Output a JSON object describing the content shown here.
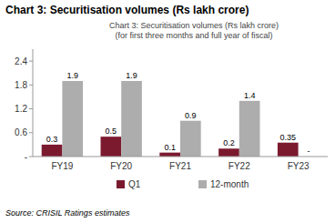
{
  "chart_data": {
    "type": "bar",
    "title": "Chart 3: Securitisation volumes (Rs lakh crore)",
    "subtitle": [
      "Chart 3: Securitisation volumes (Rs lakh crore)",
      "(for first three months and full year of fiscal)"
    ],
    "source": "Source: CRISIL Ratings estimates",
    "categories": [
      "FY19",
      "FY20",
      "FY21",
      "FY22",
      "FY23"
    ],
    "series": [
      {
        "name": "Q1",
        "color": "#7B1A2E",
        "values": [
          0.3,
          0.5,
          0.1,
          0.2,
          0.35
        ]
      },
      {
        "name": "12-month",
        "color": "#ADADAD",
        "values": [
          1.9,
          1.9,
          0.9,
          1.4,
          0
        ],
        "value_labels": [
          "1.9",
          "1.9",
          "0.9",
          "1.4",
          "-"
        ]
      }
    ],
    "ylim": [
      0,
      2.7
    ],
    "yticks": [
      {
        "value": 0,
        "label": "-"
      },
      0.6,
      1.2,
      1.8,
      2.4
    ],
    "grid": false,
    "legend": "bottom",
    "data_labels": true
  }
}
